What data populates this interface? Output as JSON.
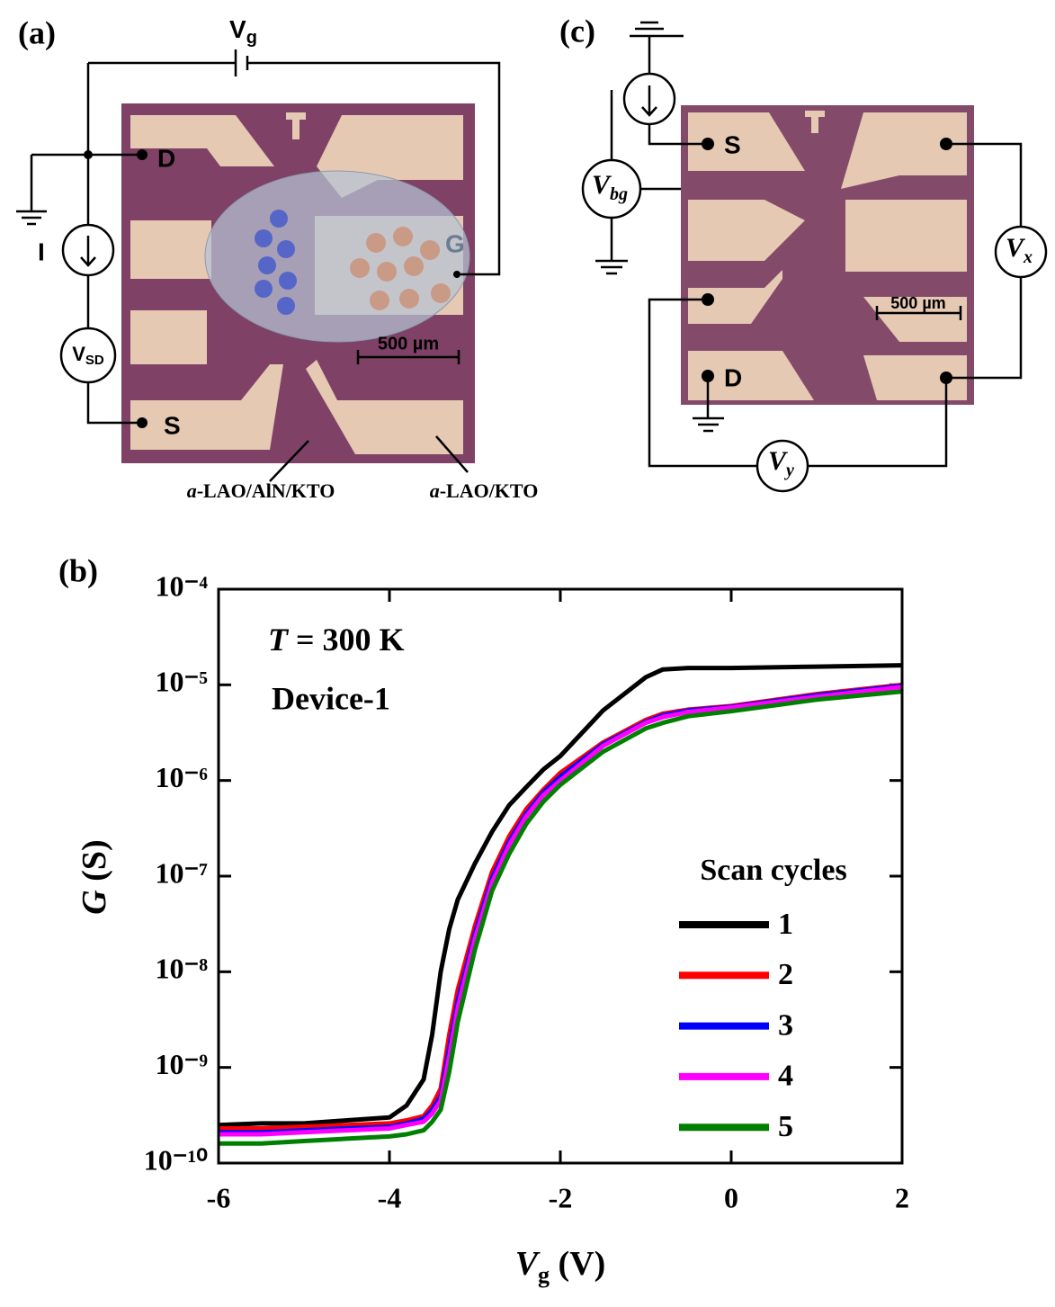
{
  "panel_a": {
    "label": "(a)",
    "gate_voltage": {
      "symbol": "V",
      "sub": "g"
    },
    "drain": "D",
    "source": "S",
    "current": "I",
    "sd_voltage": {
      "symbol": "V",
      "sub": "SD"
    },
    "gate": "G",
    "scale_bar": "500 µm",
    "region_1": {
      "prefix": "a",
      "rest": "-LAO/AlN/KTO"
    },
    "region_2": {
      "prefix": "a",
      "rest": "-LAO/KTO"
    }
  },
  "panel_c": {
    "label": "(c)",
    "source": "S",
    "drain": "D",
    "backgate_voltage": {
      "symbol": "V",
      "sub": "bg"
    },
    "x_voltage": {
      "symbol": "V",
      "sub": "x"
    },
    "y_voltage": {
      "symbol": "V",
      "sub": "y"
    },
    "scale_bar": "500 µm"
  },
  "panel_b_label": "(b)",
  "chart_data": {
    "type": "line",
    "annotation_temperature": {
      "symbol": "T",
      "rest": " = 300 K"
    },
    "annotation_device": "Device-1",
    "xlabel": {
      "symbol": "V",
      "sub": "g",
      "unit": " (V)"
    },
    "ylabel": {
      "symbol": "G",
      "unit": " (S)"
    },
    "legend_title": "Scan cycles",
    "log_y": true,
    "xlim": [
      -6,
      2
    ],
    "xticks": [
      -6,
      -4,
      -2,
      0,
      2
    ],
    "ylim": [
      1e-10,
      0.0001
    ],
    "yticks": [
      {
        "value": 1e-10,
        "label": "10⁻¹⁰"
      },
      {
        "value": 1e-09,
        "label": "10⁻⁹"
      },
      {
        "value": 1e-08,
        "label": "10⁻⁸"
      },
      {
        "value": 1e-07,
        "label": "10⁻⁷"
      },
      {
        "value": 1e-06,
        "label": "10⁻⁶"
      },
      {
        "value": 1e-05,
        "label": "10⁻⁵"
      },
      {
        "value": 0.0001,
        "label": "10⁻⁴"
      }
    ],
    "x": [
      -6,
      -5.5,
      -5,
      -4.5,
      -4,
      -3.8,
      -3.6,
      -3.5,
      -3.4,
      -3.3,
      -3.2,
      -3,
      -2.8,
      -2.6,
      -2.4,
      -2.2,
      -2,
      -1.5,
      -1,
      -0.8,
      -0.5,
      0,
      1,
      2
    ],
    "series": [
      {
        "name": "1",
        "color": "#000000",
        "values": [
          2.5e-10,
          2.6e-10,
          2.6e-10,
          2.8e-10,
          3e-10,
          4e-10,
          7.5e-10,
          2.2e-09,
          1e-08,
          2.8e-08,
          5.7e-08,
          1.35e-07,
          2.9e-07,
          5.5e-07,
          8.5e-07,
          1.3e-06,
          1.8e-06,
          5.4e-06,
          1.2e-05,
          1.45e-05,
          1.5e-05,
          1.5e-05,
          1.55e-05,
          1.6e-05
        ]
      },
      {
        "name": "2",
        "color": "#ff0000",
        "values": [
          2.3e-10,
          2.3e-10,
          2.4e-10,
          2.5e-10,
          2.6e-10,
          2.8e-10,
          3.1e-10,
          4e-10,
          6e-10,
          2.2e-09,
          6.5e-09,
          3e-08,
          1.1e-07,
          2.6e-07,
          5e-07,
          8e-07,
          1.2e-06,
          2.5e-06,
          4.3e-06,
          5e-06,
          5.5e-06,
          6e-06,
          8e-06,
          1e-05
        ]
      },
      {
        "name": "3",
        "color": "#0000ff",
        "values": [
          2.1e-10,
          2.1e-10,
          2.2e-10,
          2.3e-10,
          2.4e-10,
          2.6e-10,
          2.9e-10,
          3.6e-10,
          5e-10,
          1.6e-09,
          5e-09,
          2.5e-08,
          9.5e-08,
          2.3e-07,
          4.5e-07,
          7.5e-07,
          1.1e-06,
          2.4e-06,
          4.1e-06,
          4.8e-06,
          5.4e-06,
          5.9e-06,
          7.8e-06,
          9.8e-06
        ]
      },
      {
        "name": "4",
        "color": "#ff00ff",
        "values": [
          2e-10,
          2e-10,
          2.1e-10,
          2.2e-10,
          2.3e-10,
          2.5e-10,
          2.7e-10,
          3.3e-10,
          4.5e-10,
          1.3e-09,
          4.2e-09,
          2.2e-08,
          8.5e-08,
          2.1e-07,
          4.2e-07,
          7e-07,
          1e-06,
          2.3e-06,
          4e-06,
          4.6e-06,
          5.2e-06,
          5.8e-06,
          7.5e-06,
          9.5e-06
        ]
      },
      {
        "name": "5",
        "color": "#008000",
        "values": [
          1.6e-10,
          1.6e-10,
          1.7e-10,
          1.8e-10,
          1.9e-10,
          2e-10,
          2.2e-10,
          2.7e-10,
          3.6e-10,
          9e-10,
          3e-09,
          1.7e-08,
          7e-08,
          1.7e-07,
          3.5e-07,
          6e-07,
          9e-07,
          2e-06,
          3.5e-06,
          4e-06,
          4.7e-06,
          5.3e-06,
          7e-06,
          8.5e-06
        ]
      }
    ]
  }
}
